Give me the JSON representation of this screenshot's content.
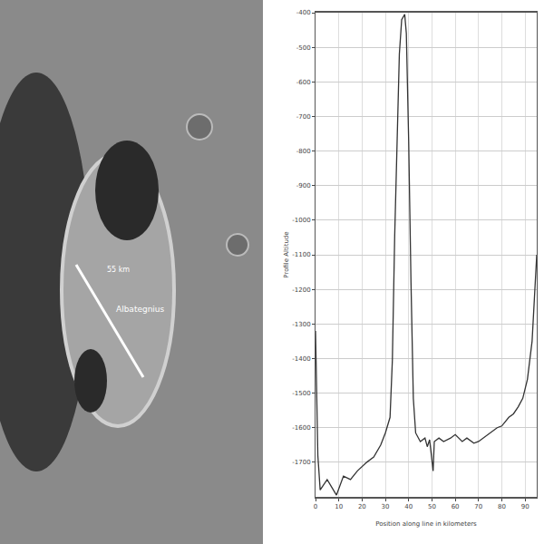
{
  "image": {
    "labels": [
      "55 km",
      "Albategnius"
    ]
  },
  "chart_data": {
    "type": "line",
    "x_label": "Position along line in kilometers",
    "y_label": "Profile Altitude",
    "x": [
      0,
      1,
      2,
      5,
      9,
      12,
      15,
      18,
      22,
      25,
      28,
      30,
      32,
      33,
      34,
      35,
      36,
      37,
      38.3,
      39,
      40,
      41,
      42,
      43,
      45,
      47,
      48,
      49,
      50.5,
      51,
      53,
      55,
      58,
      60,
      63,
      65,
      68,
      70,
      73,
      75,
      78,
      80,
      83,
      85,
      87,
      89,
      91,
      93,
      94,
      95
    ],
    "values": [
      -1320,
      -1680,
      -1780,
      -1750,
      -1795,
      -1740,
      -1750,
      -1725,
      -1700,
      -1685,
      -1650,
      -1615,
      -1570,
      -1405,
      -1045,
      -770,
      -520,
      -420,
      -405,
      -460,
      -770,
      -1180,
      -1515,
      -1615,
      -1640,
      -1630,
      -1655,
      -1635,
      -1725,
      -1640,
      -1630,
      -1640,
      -1630,
      -1620,
      -1640,
      -1630,
      -1645,
      -1640,
      -1625,
      -1615,
      -1600,
      -1595,
      -1570,
      -1560,
      -1540,
      -1515,
      -1460,
      -1350,
      -1240,
      -1100
    ],
    "color": "#333333",
    "xlim": [
      0,
      95
    ],
    "xticks": [
      0,
      10,
      20,
      30,
      40,
      50,
      60,
      70,
      80,
      90
    ],
    "ylim": [
      -1800,
      -400
    ],
    "yticks": [
      -1700,
      -1600,
      -1500,
      -1400,
      -1300,
      -1200,
      -1100,
      -1000,
      -900,
      -800,
      -700,
      -600,
      -500,
      -400
    ],
    "grid": true
  }
}
